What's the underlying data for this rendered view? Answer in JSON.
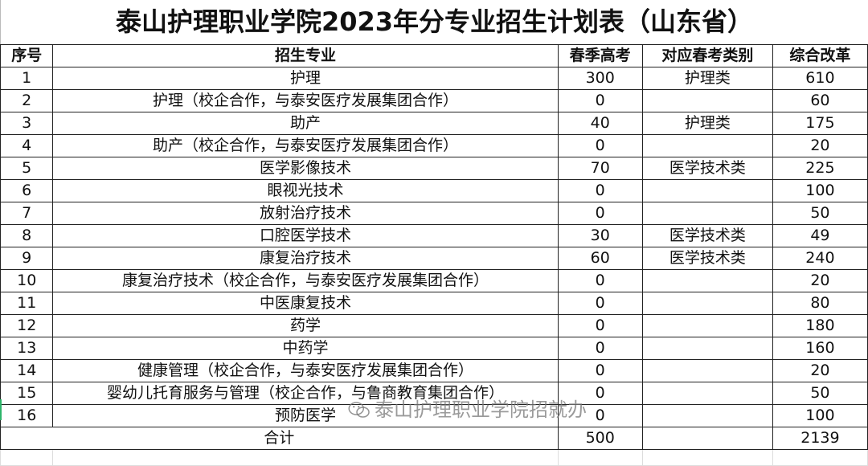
{
  "title": "泰山护理职业学院2023年分专业招生计划表（山东省）",
  "headers": [
    "序号",
    "招生专业",
    "春季高考",
    "对应春考类别",
    "综合改革"
  ],
  "rows": [
    [
      "1",
      "护理",
      "300",
      "护理类",
      "610"
    ],
    [
      "2",
      "护理（校企合作，与泰安医疗发展集团合作）",
      "0",
      "",
      "60"
    ],
    [
      "3",
      "助产",
      "40",
      "护理类",
      "175"
    ],
    [
      "4",
      "助产（校企合作，与泰安医疗发展集团合作）",
      "0",
      "",
      "20"
    ],
    [
      "5",
      "医学影像技术",
      "70",
      "医学技术类",
      "225"
    ],
    [
      "6",
      "眼视光技术",
      "0",
      "",
      "100"
    ],
    [
      "7",
      "放射治疗技术",
      "0",
      "",
      "50"
    ],
    [
      "8",
      "口腔医学技术",
      "30",
      "医学技术类",
      "49"
    ],
    [
      "9",
      "康复治疗技术",
      "60",
      "医学技术类",
      "240"
    ],
    [
      "10",
      "康复治疗技术（校企合作，与泰安医疗发展集团合作）",
      "0",
      "",
      "20"
    ],
    [
      "11",
      "中医康复技术",
      "0",
      "",
      "80"
    ],
    [
      "12",
      "药学",
      "0",
      "",
      "180"
    ],
    [
      "13",
      "中药学",
      "0",
      "",
      "160"
    ],
    [
      "14",
      "健康管理（校企合作，与泰安医疗发展集团合作）",
      "0",
      "",
      "20"
    ],
    [
      "15",
      "婴幼儿托育服务与管理（校企合作，与鲁商教育集团合作）",
      "0",
      "",
      "50"
    ],
    [
      "16",
      "预防医学",
      "0",
      "",
      "100"
    ]
  ],
  "total": {
    "label": "合计",
    "spring": "500",
    "reform": "2139"
  },
  "watermark": {
    "icon": "wechat-icon",
    "text": "泰山护理职业学院招就办"
  }
}
